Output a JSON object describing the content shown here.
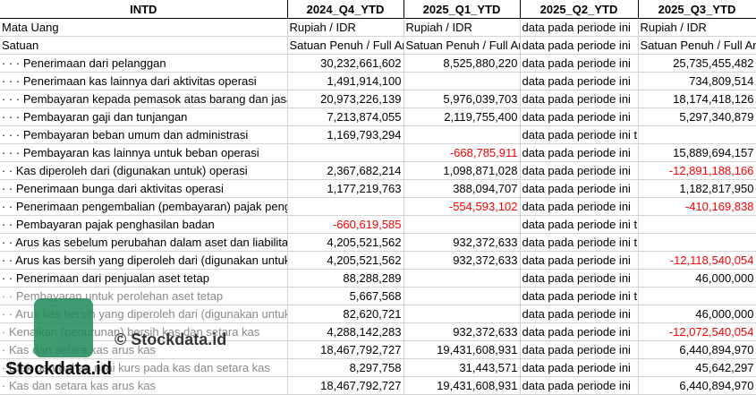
{
  "headers": [
    "INTD",
    "2024_Q4_YTD",
    "2025_Q1_YTD",
    "2025_Q2_YTD",
    "2025_Q3_YTD"
  ],
  "rows": [
    {
      "label": "Mata Uang",
      "cells": [
        "Rupiah / IDR",
        "Rupiah / IDR",
        "data pada periode ini",
        "Rupiah / IDR"
      ],
      "types": [
        "txt",
        "txt",
        "txt",
        "txt"
      ]
    },
    {
      "label": "Satuan",
      "cells": [
        "Satuan Penuh / Full Amount",
        "Satuan Penuh / Full Amount",
        "data pada periode ini",
        "Satuan Penuh / Full Amount"
      ],
      "types": [
        "txt",
        "txt",
        "txt",
        "txt"
      ]
    },
    {
      "label": "· · · Penerimaan dari pelanggan",
      "cells": [
        "30,232,661,602",
        "8,525,880,220",
        "data pada periode ini",
        "25,735,455,482"
      ],
      "types": [
        "num",
        "num",
        "txt",
        "num"
      ]
    },
    {
      "label": "· · · Penerimaan kas lainnya dari aktivitas operasi",
      "cells": [
        "1,491,914,100",
        "",
        "data pada periode ini",
        "734,809,514"
      ],
      "types": [
        "num",
        "num",
        "txt",
        "num"
      ]
    },
    {
      "label": "· · · Pembayaran kepada pemasok atas barang dan jasa",
      "cells": [
        "20,973,226,139",
        "5,976,039,703",
        "data pada periode ini",
        "18,174,418,126"
      ],
      "types": [
        "num",
        "num",
        "txt",
        "num"
      ]
    },
    {
      "label": "· · · Pembayaran gaji dan tunjangan",
      "cells": [
        "7,213,874,055",
        "2,119,755,400",
        "data pada periode ini",
        "5,297,340,879"
      ],
      "types": [
        "num",
        "num",
        "txt",
        "num"
      ]
    },
    {
      "label": "· · · Pembayaran beban umum dan administrasi",
      "cells": [
        "1,169,793,294",
        "",
        "data pada periode ini tidak tersedia",
        ""
      ],
      "types": [
        "num",
        "num",
        "txt",
        "num"
      ]
    },
    {
      "label": "· · · Pembayaran kas lainnya untuk beban operasi",
      "cells": [
        "",
        "-668,785,911",
        "data pada periode ini",
        "15,889,694,157"
      ],
      "types": [
        "num",
        "neg",
        "txt",
        "num"
      ]
    },
    {
      "label": "· · Kas diperoleh dari (digunakan untuk) operasi",
      "cells": [
        "2,367,682,214",
        "1,098,871,028",
        "data pada periode ini",
        "-12,891,188,166"
      ],
      "types": [
        "num",
        "num",
        "txt",
        "neg"
      ]
    },
    {
      "label": "· · Penerimaan bunga dari aktivitas operasi",
      "cells": [
        "1,177,219,763",
        "388,094,707",
        "data pada periode ini",
        "1,182,817,950"
      ],
      "types": [
        "num",
        "num",
        "txt",
        "num"
      ]
    },
    {
      "label": "· · Penerimaan pengembalian (pembayaran) pajak penghasilan dari aktivitas operasi",
      "cells": [
        "",
        "-554,593,102",
        "data pada periode ini",
        "-410,169,838"
      ],
      "types": [
        "num",
        "neg",
        "txt",
        "neg"
      ]
    },
    {
      "label": "· · Pembayaran pajak penghasilan badan",
      "cells": [
        "-660,619,585",
        "",
        "data pada periode ini tidak tersedia",
        ""
      ],
      "types": [
        "neg",
        "num",
        "txt",
        "num"
      ]
    },
    {
      "label": "· · Arus kas sebelum perubahan dalam aset dan liabilitas",
      "cells": [
        "4,205,521,562",
        "932,372,633",
        "data pada periode ini tidak tersedia",
        ""
      ],
      "types": [
        "num",
        "num",
        "txt",
        "num"
      ]
    },
    {
      "label": "· · Arus kas bersih yang diperoleh dari (digunakan untuk) aktivitas operasi",
      "cells": [
        "4,205,521,562",
        "932,372,633",
        "data pada periode ini",
        "-12,118,540,054"
      ],
      "types": [
        "num",
        "num",
        "txt",
        "neg"
      ]
    },
    {
      "label": "· · Penerimaan dari penjualan aset tetap",
      "cells": [
        "88,288,289",
        "",
        "data pada periode ini",
        "46,000,000"
      ],
      "types": [
        "num",
        "num",
        "txt",
        "num"
      ]
    },
    {
      "label": "· · Pembayaran untuk perolehan aset tetap",
      "cells": [
        "5,667,568",
        "",
        "data pada periode ini tidak tersedia",
        ""
      ],
      "types": [
        "num",
        "num",
        "txt",
        "num"
      ],
      "faded": true
    },
    {
      "label": "· · Arus kas bersih yang diperoleh dari (digunakan untuk) aktivitas investasi",
      "cells": [
        "82,620,721",
        "",
        "data pada periode ini",
        "46,000,000"
      ],
      "types": [
        "num",
        "num",
        "txt",
        "num"
      ],
      "faded": true
    },
    {
      "label": "· Kenaikan (penurunan) bersih kas dan setara kas",
      "cells": [
        "4,288,142,283",
        "932,372,633",
        "data pada periode ini",
        "-12,072,540,054"
      ],
      "types": [
        "num",
        "num",
        "txt",
        "neg"
      ],
      "faded": true
    },
    {
      "label": "· Kas dan setara kas arus kas",
      "cells": [
        "18,467,792,727",
        "19,431,608,931",
        "data pada periode ini",
        "6,440,894,970"
      ],
      "types": [
        "num",
        "num",
        "txt",
        "num"
      ],
      "faded": true
    },
    {
      "label": "· Efek perubahan nilai kurs pada kas dan setara kas",
      "cells": [
        "8,297,758",
        "31,443,571",
        "data pada periode ini",
        "45,642,297"
      ],
      "types": [
        "num",
        "num",
        "txt",
        "num"
      ],
      "faded": true
    },
    {
      "label": "· Kas dan setara kas arus kas",
      "cells": [
        "18,467,792,727",
        "19,431,608,931",
        "data pada periode ini",
        "6,440,894,970"
      ],
      "types": [
        "num",
        "num",
        "txt",
        "num"
      ],
      "faded": true
    }
  ],
  "watermark": {
    "center": "© Stockdata.id",
    "brand": "Stockdata.id"
  },
  "colors": {
    "negative": "#ff0000",
    "logo": "#1e8b57"
  }
}
